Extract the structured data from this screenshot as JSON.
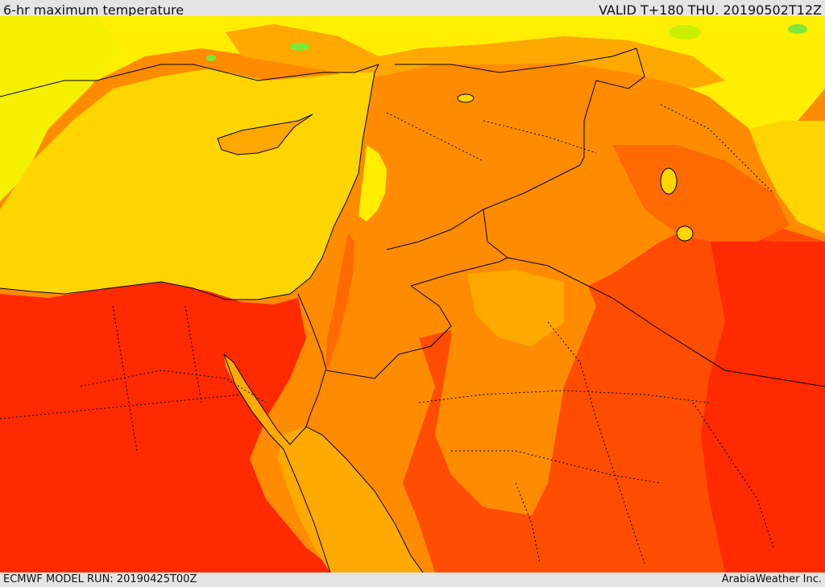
{
  "header": {
    "title": "6-hr maximum temperature",
    "valid": "VALID T+180 THU. 20190502T12Z"
  },
  "footer": {
    "model_run": "ECMWF MODEL RUN: 20190425T00Z",
    "credit": "ArabiaWeather Inc."
  },
  "map": {
    "variable": "6-hr maximum temperature",
    "colors": {
      "cool_green": "#7ee83a",
      "bright_yellow": "#f4f000",
      "light_yellow": "#ffee00",
      "gold": "#ffd500",
      "light_orange": "#ffa800",
      "orange": "#ff8c00",
      "dark_orange": "#ff6a00",
      "red_orange": "#ff4d00",
      "red": "#ff2a00",
      "border_color": "#000000"
    }
  }
}
